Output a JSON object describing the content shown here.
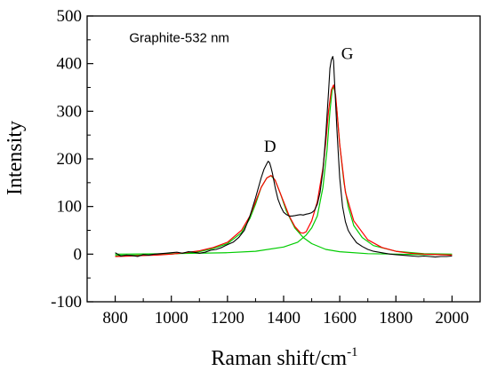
{
  "chart_data": {
    "type": "line",
    "title": "",
    "xlabel": "Raman shift/cm",
    "xlabel_superscript": "-1",
    "ylabel": "Intensity",
    "xlim": [
      700,
      2100
    ],
    "ylim": [
      -100,
      500
    ],
    "x_ticks": [
      800,
      1000,
      1200,
      1400,
      1600,
      1800,
      2000
    ],
    "y_ticks": [
      -100,
      0,
      100,
      200,
      300,
      400,
      500
    ],
    "grid": false,
    "legend": "none",
    "annotations": [
      {
        "text": "Graphite-532 nm",
        "x": 850,
        "y": 445
      },
      {
        "text": "D",
        "x": 1330,
        "y": 215
      },
      {
        "text": "G",
        "x": 1605,
        "y": 410
      }
    ],
    "series": [
      {
        "role": "measured",
        "color": "#000000",
        "x": [
          800,
          820,
          840,
          860,
          880,
          900,
          920,
          940,
          960,
          980,
          1000,
          1020,
          1040,
          1060,
          1080,
          1100,
          1120,
          1140,
          1160,
          1180,
          1200,
          1220,
          1240,
          1260,
          1280,
          1300,
          1320,
          1330,
          1340,
          1345,
          1350,
          1355,
          1360,
          1370,
          1380,
          1390,
          1400,
          1410,
          1420,
          1430,
          1440,
          1450,
          1460,
          1470,
          1480,
          1490,
          1500,
          1510,
          1520,
          1530,
          1540,
          1550,
          1560,
          1565,
          1570,
          1575,
          1578,
          1580,
          1585,
          1590,
          1600,
          1610,
          1620,
          1630,
          1640,
          1660,
          1680,
          1700,
          1720,
          1740,
          1760,
          1780,
          1800,
          1820,
          1840,
          1860,
          1880,
          1900,
          1920,
          1940,
          1960,
          1980,
          2000
        ],
        "y": [
          3,
          -4,
          -2,
          -3,
          -5,
          -1,
          -2,
          0,
          1,
          2,
          3,
          4,
          2,
          5,
          4,
          2,
          4,
          8,
          10,
          14,
          20,
          25,
          35,
          50,
          80,
          118,
          160,
          178,
          190,
          195,
          192,
          182,
          170,
          140,
          115,
          100,
          88,
          83,
          80,
          80,
          81,
          82,
          83,
          82,
          84,
          85,
          87,
          92,
          105,
          130,
          175,
          250,
          340,
          390,
          408,
          415,
          405,
          380,
          320,
          260,
          160,
          100,
          68,
          50,
          40,
          24,
          16,
          10,
          6,
          4,
          2,
          0,
          -1,
          -2,
          -3,
          -4,
          -5,
          -4,
          -5,
          -6,
          -5,
          -5,
          -4
        ]
      },
      {
        "role": "fit-total",
        "color": "#ff0000",
        "x": [
          800,
          850,
          900,
          950,
          1000,
          1050,
          1100,
          1150,
          1200,
          1250,
          1280,
          1300,
          1320,
          1340,
          1355,
          1360,
          1370,
          1380,
          1400,
          1420,
          1440,
          1460,
          1470,
          1480,
          1500,
          1520,
          1540,
          1550,
          1560,
          1570,
          1578,
          1585,
          1590,
          1600,
          1620,
          1650,
          1700,
          1750,
          1800,
          1850,
          1900,
          1950,
          2000
        ],
        "y": [
          -5,
          -4,
          -3,
          -2,
          0,
          3,
          7,
          14,
          25,
          50,
          80,
          110,
          140,
          160,
          165,
          163,
          155,
          140,
          110,
          80,
          58,
          45,
          44,
          47,
          70,
          110,
          180,
          235,
          300,
          345,
          355,
          335,
          300,
          230,
          130,
          70,
          30,
          14,
          6,
          2,
          0,
          -1,
          -2
        ]
      },
      {
        "role": "fit-component-D",
        "color": "#00cc00",
        "x": [
          800,
          900,
          1000,
          1100,
          1150,
          1200,
          1250,
          1280,
          1300,
          1320,
          1340,
          1355,
          1370,
          1390,
          1410,
          1440,
          1470,
          1500,
          1550,
          1600,
          1700,
          1800,
          1900,
          2000
        ],
        "y": [
          -3,
          -2,
          0,
          5,
          12,
          22,
          45,
          75,
          105,
          140,
          160,
          165,
          155,
          125,
          90,
          55,
          35,
          22,
          10,
          5,
          1,
          0,
          -1,
          -1
        ]
      },
      {
        "role": "fit-component-G",
        "color": "#00cc00",
        "x": [
          800,
          1000,
          1200,
          1300,
          1400,
          1450,
          1480,
          1500,
          1520,
          1540,
          1555,
          1565,
          1573,
          1578,
          1583,
          1590,
          1600,
          1615,
          1630,
          1650,
          1680,
          1720,
          1800,
          1900,
          2000
        ],
        "y": [
          0,
          1,
          3,
          6,
          15,
          25,
          40,
          55,
          80,
          140,
          220,
          300,
          345,
          352,
          340,
          300,
          230,
          150,
          100,
          60,
          35,
          18,
          6,
          1,
          0
        ]
      }
    ]
  }
}
